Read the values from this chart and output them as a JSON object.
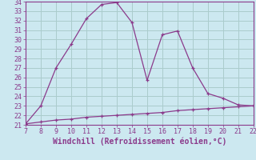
{
  "x": [
    7,
    8,
    9,
    10,
    11,
    12,
    13,
    14,
    15,
    16,
    17,
    18,
    19,
    20,
    21,
    22
  ],
  "y_upper": [
    21.1,
    23.0,
    27.0,
    29.5,
    32.2,
    33.7,
    33.9,
    31.8,
    25.7,
    30.5,
    30.9,
    27.0,
    24.3,
    23.8,
    23.1,
    23.0
  ],
  "y_lower": [
    21.1,
    21.3,
    21.5,
    21.6,
    21.8,
    21.9,
    22.0,
    22.1,
    22.2,
    22.3,
    22.5,
    22.6,
    22.7,
    22.8,
    22.9,
    23.0
  ],
  "line_color": "#8b3a8b",
  "bg_color": "#cce8f0",
  "grid_color": "#aacccc",
  "xlabel": "Windchill (Refroidissement éolien,°C)",
  "xlim": [
    7,
    22
  ],
  "ylim": [
    21,
    34
  ],
  "xticks": [
    7,
    8,
    9,
    10,
    11,
    12,
    13,
    14,
    15,
    16,
    17,
    18,
    19,
    20,
    21,
    22
  ],
  "yticks": [
    21,
    22,
    23,
    24,
    25,
    26,
    27,
    28,
    29,
    30,
    31,
    32,
    33,
    34
  ],
  "tick_fontsize": 6,
  "xlabel_fontsize": 7
}
